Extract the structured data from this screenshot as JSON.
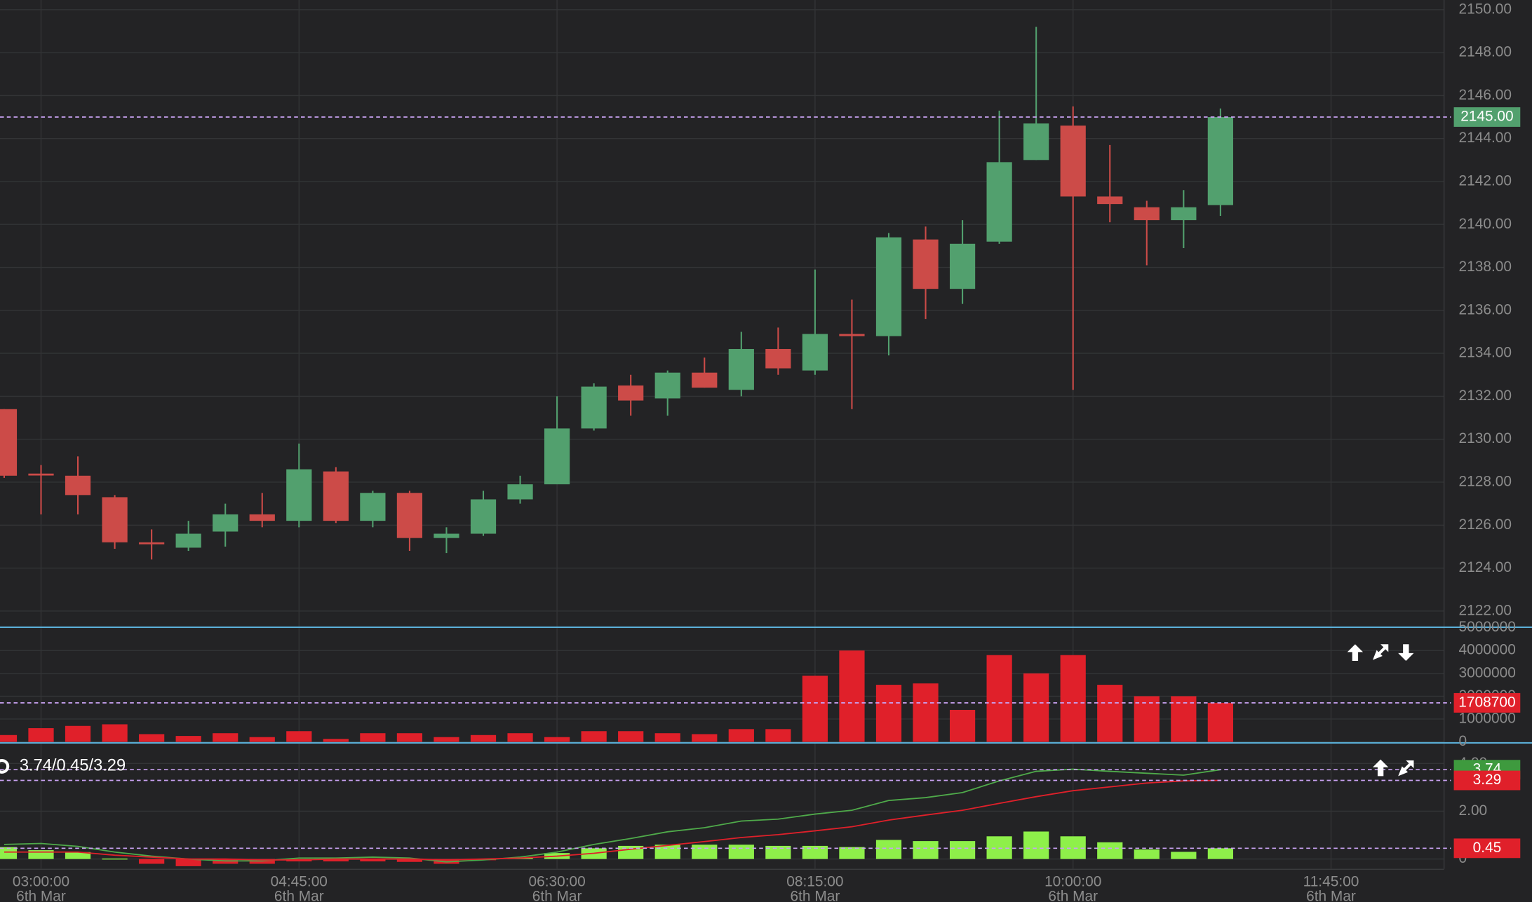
{
  "chart_data": [
    {
      "type": "candlestick",
      "x": [
        "02:45:00",
        "03:00:00",
        "03:15:00",
        "03:30:00",
        "03:45:00",
        "04:00:00",
        "04:15:00",
        "04:30:00",
        "04:45:00",
        "05:00:00",
        "05:15:00",
        "05:30:00",
        "05:45:00",
        "06:00:00",
        "06:15:00",
        "06:30:00",
        "06:45:00",
        "07:00:00",
        "07:15:00",
        "07:30:00",
        "07:45:00",
        "08:00:00",
        "08:15:00",
        "08:30:00",
        "08:45:00",
        "09:00:00",
        "09:15:00",
        "09:30:00",
        "09:45:00",
        "10:00:00",
        "10:15:00",
        "10:30:00",
        "10:45:00",
        "11:00:00"
      ],
      "open": [
        2131.4,
        2128.4,
        2128.3,
        2127.3,
        2125.2,
        2124.95,
        2125.7,
        2126.5,
        2126.2,
        2128.5,
        2126.2,
        2127.5,
        2125.4,
        2125.6,
        2127.2,
        2127.9,
        2130.5,
        2132.5,
        2131.9,
        2133.1,
        2132.3,
        2134.2,
        2133.2,
        2134.9,
        2134.8,
        2139.3,
        2137.0,
        2139.2,
        2143.0,
        2144.6,
        2141.3,
        2140.8,
        2140.2,
        2140.9
      ],
      "high": [
        2131.4,
        2128.8,
        2129.2,
        2127.4,
        2125.8,
        2126.2,
        2127.0,
        2127.5,
        2129.8,
        2128.7,
        2127.6,
        2127.6,
        2125.9,
        2127.6,
        2128.3,
        2132.0,
        2132.6,
        2133.0,
        2133.2,
        2133.8,
        2135.0,
        2135.2,
        2137.9,
        2136.5,
        2139.6,
        2139.9,
        2140.2,
        2145.3,
        2149.2,
        2145.5,
        2143.7,
        2141.1,
        2141.6,
        2145.4
      ],
      "low": [
        2128.2,
        2126.5,
        2126.5,
        2124.9,
        2124.4,
        2124.8,
        2125.0,
        2125.9,
        2125.9,
        2126.1,
        2125.9,
        2124.8,
        2124.7,
        2125.5,
        2127.0,
        2127.9,
        2130.4,
        2131.1,
        2131.1,
        2132.4,
        2132.0,
        2133.0,
        2133.0,
        2131.4,
        2133.9,
        2135.6,
        2136.3,
        2139.1,
        2143.0,
        2132.3,
        2140.1,
        2138.1,
        2138.9,
        2140.4
      ],
      "close": [
        2128.3,
        2128.4,
        2127.4,
        2125.2,
        2125.2,
        2125.6,
        2126.5,
        2126.2,
        2128.6,
        2126.2,
        2127.5,
        2125.4,
        2125.6,
        2127.2,
        2127.9,
        2130.5,
        2132.45,
        2131.8,
        2133.1,
        2132.4,
        2134.2,
        2133.3,
        2134.9,
        2134.8,
        2139.4,
        2137.0,
        2139.1,
        2142.9,
        2144.7,
        2141.3,
        2140.95,
        2140.2,
        2140.8,
        2145.0
      ],
      "up_color": "#52a06e",
      "down_color": "#cc4b48",
      "xlim": [
        "02:43:18",
        "12:31:00"
      ],
      "xticks": [
        "03:00:00",
        "04:45:00",
        "06:30:00",
        "08:15:00",
        "10:00:00",
        "11:45:00"
      ],
      "xtick_date": "6th Mar",
      "ylim": [
        2121.27,
        2150.45
      ],
      "yticks": [
        {
          "value": 2122,
          "label": "2122.00"
        },
        {
          "value": 2124,
          "label": "2124.00"
        },
        {
          "value": 2126,
          "label": "2126.00"
        },
        {
          "value": 2128,
          "label": "2128.00"
        },
        {
          "value": 2130,
          "label": "2130.00"
        },
        {
          "value": 2132,
          "label": "2132.00"
        },
        {
          "value": 2134,
          "label": "2134.00"
        },
        {
          "value": 2136,
          "label": "2136.00"
        },
        {
          "value": 2138,
          "label": "2138.00"
        },
        {
          "value": 2140,
          "label": "2140.00"
        },
        {
          "value": 2142,
          "label": "2142.00"
        },
        {
          "value": 2144,
          "label": "2144.00"
        },
        {
          "value": 2146,
          "label": "2146.00"
        },
        {
          "value": 2148,
          "label": "2148.00"
        },
        {
          "value": 2150,
          "label": "2150.00"
        }
      ],
      "grid": true,
      "current_label": "2145.00"
    },
    {
      "type": "bar",
      "values": [
        300000,
        600000,
        700000,
        770000,
        340000,
        260000,
        380000,
        210000,
        470000,
        130000,
        380000,
        380000,
        210000,
        300000,
        380000,
        210000,
        470000,
        470000,
        380000,
        340000,
        560000,
        560000,
        2900000,
        4000000,
        2500000,
        2560000,
        1400000,
        3800000,
        3000000,
        3800000,
        2500000,
        2000000,
        2000000,
        1708700
      ],
      "color": "#e0202a",
      "ylim": [
        0,
        5000000
      ],
      "yticks": [
        0,
        1000000,
        2000000,
        3000000,
        4000000,
        5000000
      ],
      "grid": true
    },
    {
      "type": "macd",
      "title": "3.74/0.45/3.29",
      "series": [
        {
          "kind": "line",
          "color": "#4faa4a",
          "values": [
            0.61,
            0.65,
            0.53,
            0.29,
            0.12,
            0,
            -0.08,
            -0.08,
            0.04,
            0.04,
            0.08,
            0.04,
            -0.12,
            -0.04,
            0.08,
            0.29,
            0.61,
            0.86,
            1.14,
            1.31,
            1.59,
            1.67,
            1.88,
            2.04,
            2.45,
            2.57,
            2.78,
            3.27,
            3.67,
            3.76,
            3.67,
            3.59,
            3.51,
            3.74
          ]
        },
        {
          "kind": "bar",
          "color": "#8ef04a",
          "negative_color": "#e0202a",
          "values": [
            0.5,
            0.37,
            0.29,
            0.02,
            -0.2,
            -0.3,
            -0.2,
            -0.2,
            -0.1,
            -0.1,
            -0.1,
            -0.12,
            -0.2,
            -0.05,
            0.05,
            0.25,
            0.45,
            0.55,
            0.6,
            0.6,
            0.6,
            0.55,
            0.55,
            0.5,
            0.8,
            0.75,
            0.75,
            0.95,
            1.15,
            0.95,
            0.7,
            0.4,
            0.3,
            0.45
          ]
        },
        {
          "kind": "line",
          "color": "#e0202a",
          "values": [
            0.29,
            0.29,
            0.29,
            0.16,
            0.08,
            0,
            0,
            -0.04,
            -0.04,
            0,
            0,
            0,
            -0.04,
            0,
            0.04,
            0.12,
            0.24,
            0.41,
            0.57,
            0.73,
            0.9,
            1.02,
            1.18,
            1.35,
            1.63,
            1.84,
            2.04,
            2.33,
            2.61,
            2.86,
            3.02,
            3.18,
            3.27,
            3.29
          ]
        }
      ],
      "ylim": [
        -0.41,
        4.82
      ],
      "yticks": [
        0,
        {
          "value": 2,
          "label": "2.00"
        },
        {
          "value": 4,
          "label": "4.00"
        }
      ],
      "grid": true
    }
  ]
}
